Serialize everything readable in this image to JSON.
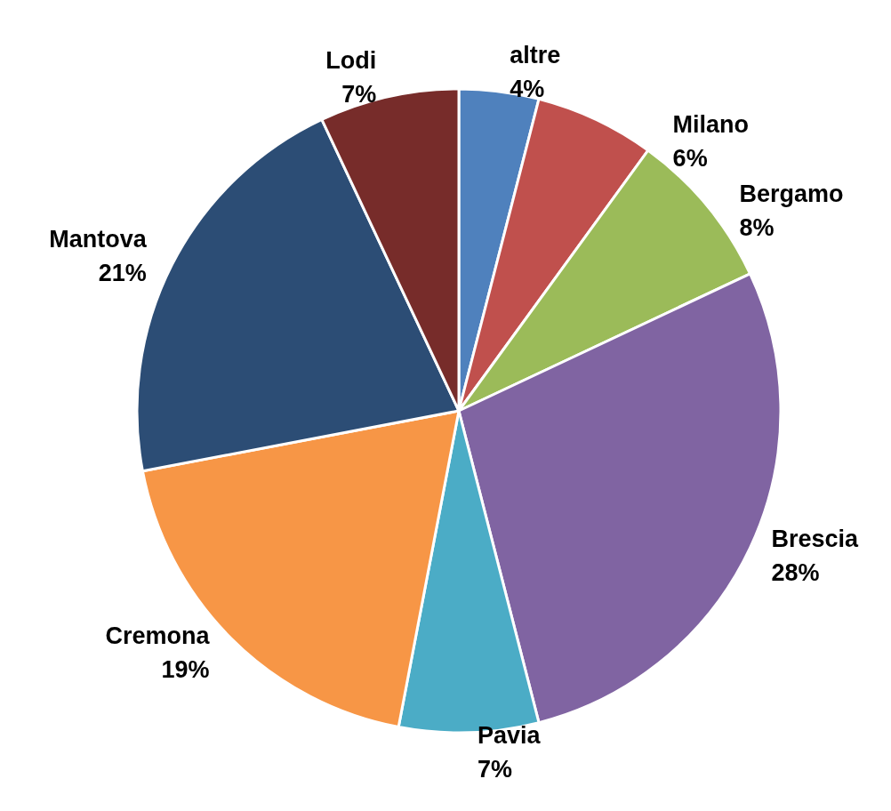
{
  "chart_data": {
    "type": "pie",
    "categories": [
      "altre",
      "Milano",
      "Bergamo",
      "Brescia",
      "Pavia",
      "Cremona",
      "Mantova",
      "Lodi"
    ],
    "values": [
      4,
      6,
      8,
      28,
      7,
      19,
      21,
      7
    ],
    "value_labels": [
      "4%",
      "6%",
      "8%",
      "28%",
      "7%",
      "19%",
      "21%",
      "7%"
    ],
    "colors": [
      "#4f81bd",
      "#c0504d",
      "#9bbb59",
      "#8064a2",
      "#4bacc6",
      "#f79646",
      "#2c4d75",
      "#772c2a"
    ],
    "legend": false
  }
}
